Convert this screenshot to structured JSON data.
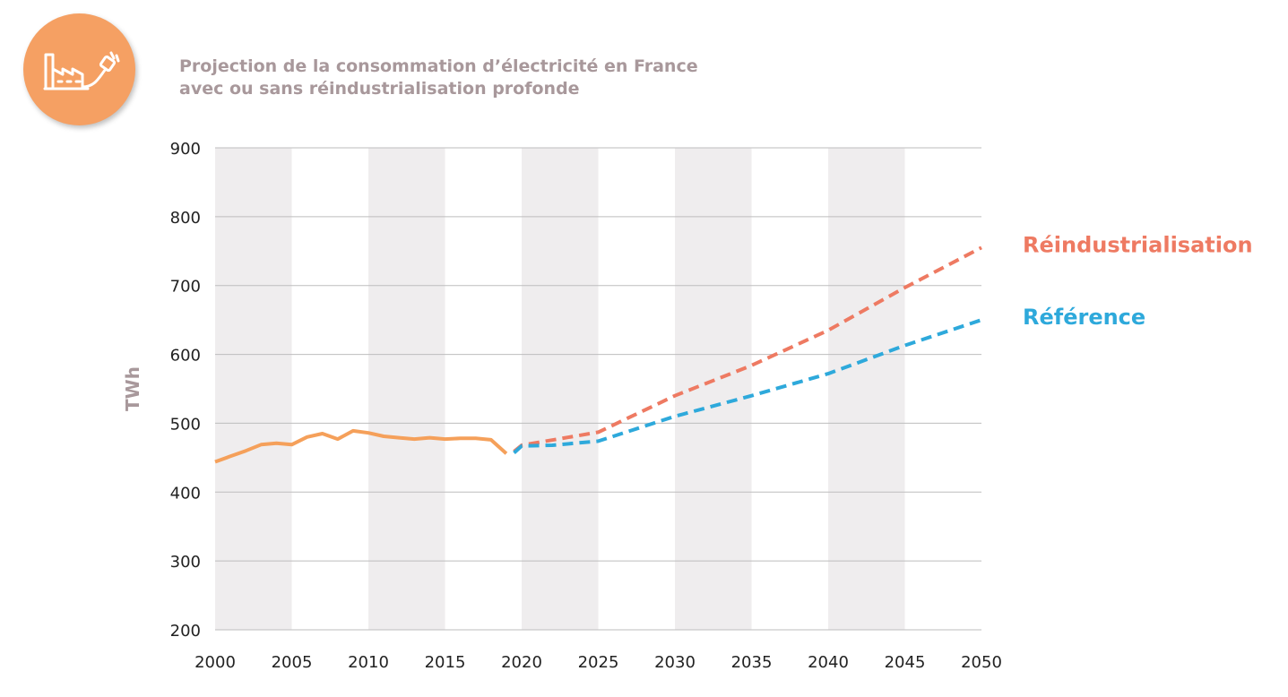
{
  "colors": {
    "historical": "#f5a05a",
    "reindustrialisation": "#ee7a62",
    "reference": "#2ea9db",
    "band": "#efedee",
    "grid": "#bdbdbd",
    "title": "#a8989b",
    "logo": "#f5a063"
  },
  "icons": {
    "logo": "factory-plug-icon"
  },
  "title_lines": [
    "Projection de la consommation d’électricité en France",
    "avec ou sans réindustrialisation profonde"
  ],
  "chart_data": {
    "type": "line",
    "title": "Projection de la consommation d’électricité en France avec ou sans réindustrialisation profonde",
    "xlabel": "",
    "ylabel": "TWh",
    "xlim": [
      2000,
      2050
    ],
    "ylim": [
      200,
      900
    ],
    "xticks": [
      2000,
      2005,
      2010,
      2015,
      2020,
      2025,
      2030,
      2035,
      2040,
      2045,
      2050
    ],
    "yticks": [
      200,
      300,
      400,
      500,
      600,
      700,
      800,
      900
    ],
    "grid": "horizontal",
    "background_bands": "alternating 5-year vertical bands",
    "series": [
      {
        "key": "historical",
        "style": "solid",
        "x": [
          2000,
          2001,
          2002,
          2003,
          2004,
          2005,
          2006,
          2007,
          2008,
          2009,
          2010,
          2011,
          2012,
          2013,
          2014,
          2015,
          2016,
          2017,
          2018,
          2019
        ],
        "y": [
          444,
          452,
          460,
          469,
          471,
          469,
          480,
          485,
          477,
          489,
          486,
          481,
          479,
          477,
          479,
          477,
          478,
          478,
          476,
          456
        ]
      },
      {
        "key": "reindustrialisation",
        "name": "Réindustrialisation",
        "style": "dashed",
        "x": [
          2019.5,
          2020,
          2025,
          2030,
          2035,
          2040,
          2045,
          2050
        ],
        "y": [
          459,
          468,
          487,
          540,
          584,
          635,
          697,
          755
        ]
      },
      {
        "key": "reference",
        "name": "Référence",
        "style": "dashed",
        "x": [
          2019.5,
          2020,
          2022,
          2025,
          2030,
          2035,
          2040,
          2045,
          2050
        ],
        "y": [
          457,
          467,
          468,
          474,
          510,
          540,
          572,
          613,
          650
        ]
      }
    ],
    "legend_placement": "right, labels at line ends"
  }
}
